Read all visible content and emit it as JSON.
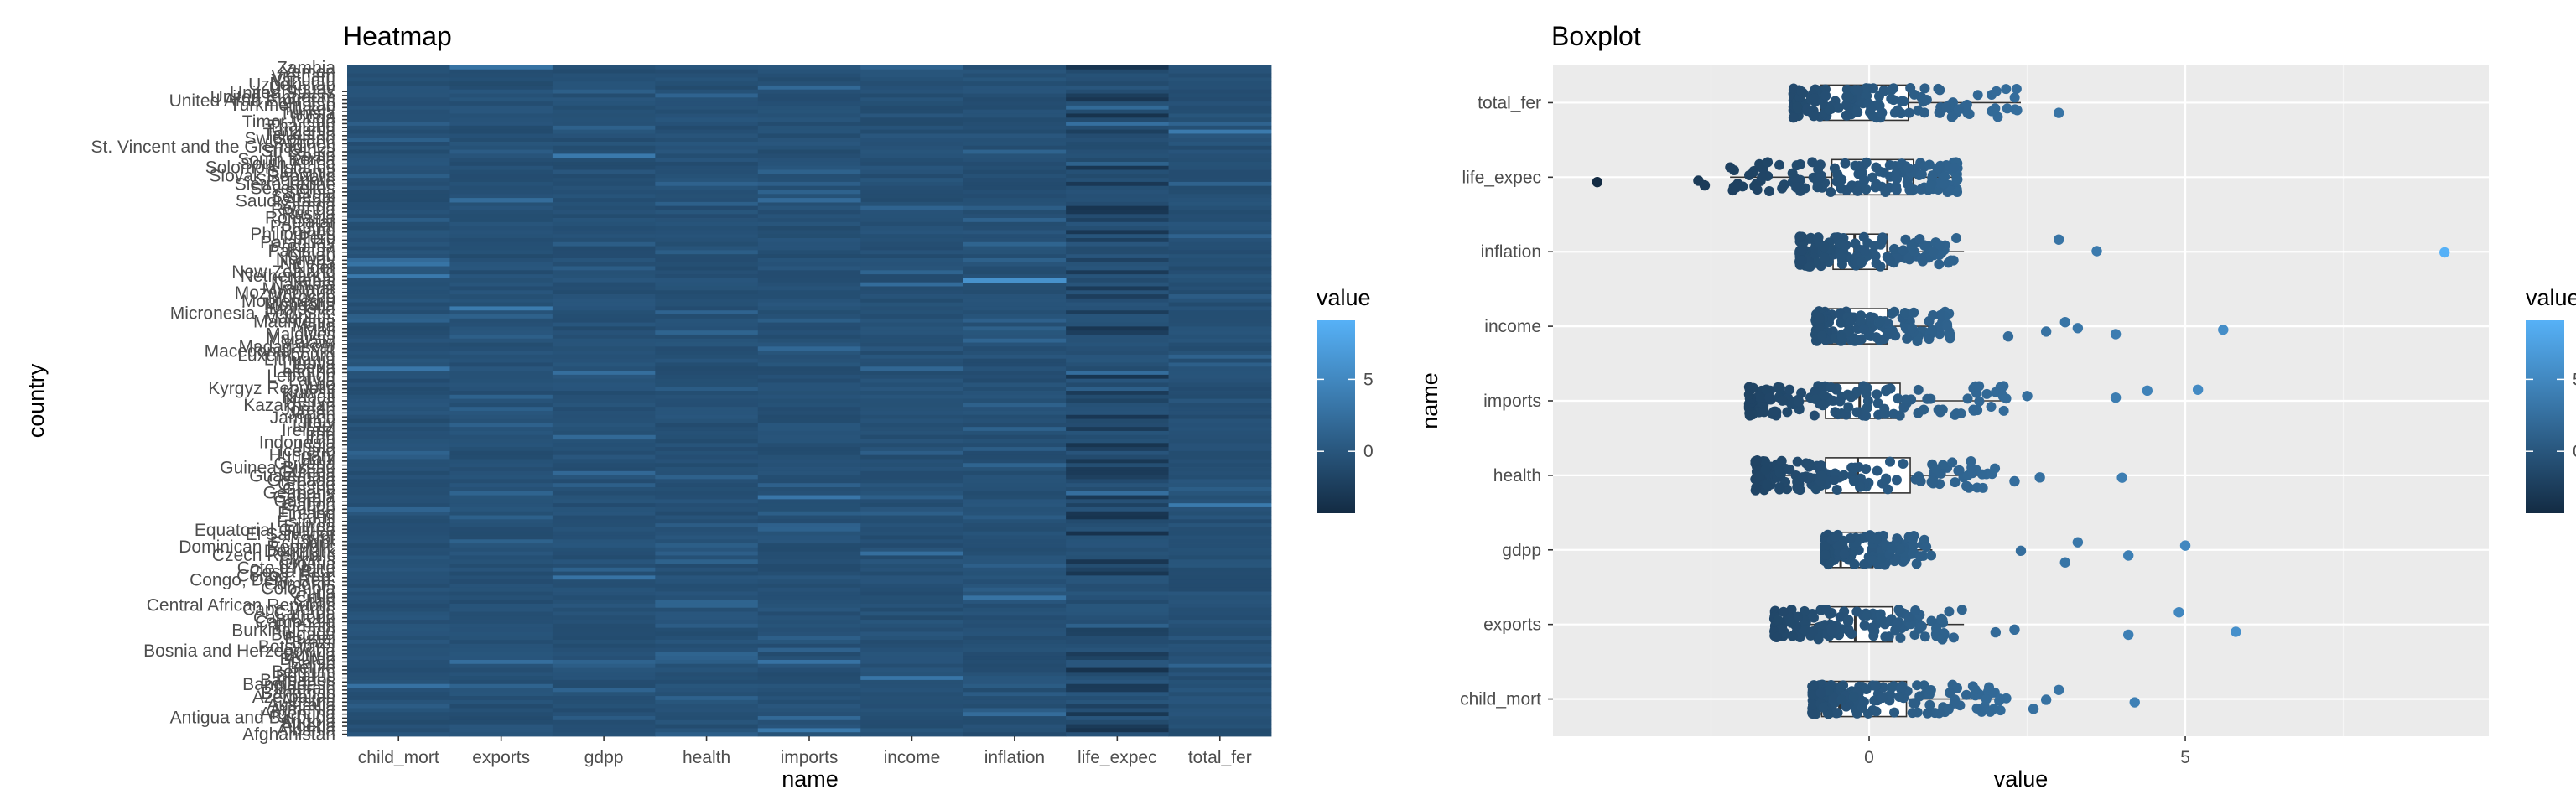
{
  "colors": {
    "panel_bg": "#ebebeb",
    "grid_major": "#ffffff",
    "grid_minor": "#f5f5f5",
    "tick": "#333333",
    "gradient_low": "#132b43",
    "gradient_high": "#56b1f7"
  },
  "chart_data": [
    {
      "id": "heatmap",
      "type": "heatmap",
      "title": "Heatmap",
      "xlabel": "name",
      "ylabel": "country",
      "x_categories": [
        "child_mort",
        "exports",
        "gdpp",
        "health",
        "imports",
        "income",
        "inflation",
        "life_expec",
        "total_fer"
      ],
      "y_count": 167,
      "visible_country_labels": [
        "Zambia",
        "Yemen",
        "Vietnam",
        "Vanuatu",
        "Uzbekistan",
        "Uruguay",
        "United States",
        "United Kingdom",
        "United Arab Emirates",
        "Turkmenistan",
        "Turkey",
        "Tunisia",
        "Tonga",
        "Timor-Leste",
        "Thailand",
        "Tanzania",
        "Tajikistan",
        "Switzerland",
        "Sweden",
        "St. Vincent and the Grenadines",
        "Sri Lanka",
        "Spain",
        "South Korea",
        "South Africa",
        "Solomon Islands",
        "Slovenia",
        "Slovak Republic",
        "Singapore",
        "Sierra Leone",
        "Seychelles",
        "Serbia",
        "Senegal",
        "Saudi Arabia",
        "Samoa",
        "Rwanda",
        "Russia",
        "Romania",
        "Qatar",
        "Portugal",
        "Poland",
        "Philippines",
        "Peru",
        "Paraguay",
        "Panama",
        "Pakistan",
        "Oman",
        "Norway",
        "Nigeria",
        "Niger",
        "New Zealand",
        "Netherlands",
        "Nepal",
        "Namibia",
        "Myanmar",
        "Mozambique",
        "Morocco",
        "Montenegro",
        "Mongolia",
        "Moldova",
        "Micronesia, Fed. Sts.",
        "Mauritius",
        "Mauritania",
        "Malta",
        "Mali",
        "Maldives",
        "Malaysia",
        "Malawi",
        "Madagascar",
        "Macedonia, FYR",
        "Luxembourg",
        "Lithuania",
        "Libya",
        "Liberia",
        "Lesotho",
        "Lebanon",
        "Latvia",
        "Lao",
        "Kyrgyz Republic",
        "Kuwait",
        "Kiribati",
        "Kenya",
        "Kazakhstan",
        "Jordan",
        "Japan",
        "Jamaica",
        "Italy",
        "Israel",
        "Ireland",
        "Iraq",
        "Iran",
        "Indonesia",
        "India",
        "Iceland",
        "Hungary",
        "Haiti",
        "Guyana",
        "Guinea-Bissau",
        "Guinea",
        "Guatemala",
        "Grenada",
        "Greece",
        "Ghana",
        "Germany",
        "Georgia",
        "Gambia",
        "Gabon",
        "France",
        "Finland",
        "Fiji",
        "Estonia",
        "Eritrea",
        "Equatorial Guinea",
        "El Salvador",
        "Egypt",
        "Ecuador",
        "Dominican Republic",
        "Denmark",
        "Czech Republic",
        "Cyprus",
        "Croatia",
        "Cote d'Ivoire",
        "Costa Rica",
        "Congo, Rep.",
        "Congo, Dem. Rep.",
        "Comoros",
        "Colombia",
        "China",
        "Chile",
        "Chad",
        "Central African Republic",
        "Cape Verde",
        "Canada",
        "Cameroon",
        "Cambodia",
        "Burundi",
        "Burkina Faso",
        "Bulgaria",
        "Brunei",
        "Brazil",
        "Botswana",
        "Bosnia and Herzegovina",
        "Bolivia",
        "Bhutan",
        "Benin",
        "Belize",
        "Belgium",
        "Belarus",
        "Barbados",
        "Bangladesh",
        "Bahrain",
        "Bahamas",
        "Azerbaijan",
        "Austria",
        "Australia",
        "Armenia",
        "Argentina",
        "Antigua and Barbuda",
        "Angola",
        "Algeria",
        "Albania",
        "Afghanistan"
      ],
      "legend": {
        "title": "value",
        "range": [
          -4.3,
          9.1
        ],
        "ticks": [
          0,
          5
        ]
      }
    },
    {
      "id": "boxplot",
      "type": "box",
      "title": "Boxplot",
      "xlabel": "value",
      "ylabel": "name",
      "categories": [
        "child_mort",
        "exports",
        "gdpp",
        "health",
        "imports",
        "income",
        "inflation",
        "life_expec",
        "total_fer"
      ],
      "xlim": [
        -5,
        9.8
      ],
      "x_ticks": [
        0,
        5
      ],
      "boxes": [
        {
          "name": "child_mort",
          "lower_whisker": -0.9,
          "q1": -0.75,
          "median": -0.47,
          "q3": 0.59,
          "upper_whisker": 2.2
        },
        {
          "name": "exports",
          "lower_whisker": -1.5,
          "q1": -0.63,
          "median": -0.22,
          "q3": 0.37,
          "upper_whisker": 1.5
        },
        {
          "name": "gdpp",
          "lower_whisker": -0.7,
          "q1": -0.64,
          "median": -0.45,
          "q3": 0.06,
          "upper_whisker": 1.0
        },
        {
          "name": "health",
          "lower_whisker": -1.8,
          "q1": -0.69,
          "median": -0.18,
          "q3": 0.65,
          "upper_whisker": 2.0
        },
        {
          "name": "imports",
          "lower_whisker": -1.9,
          "q1": -0.69,
          "median": -0.15,
          "q3": 0.49,
          "upper_whisker": 2.2
        },
        {
          "name": "income",
          "lower_whisker": -0.85,
          "q1": -0.72,
          "median": -0.37,
          "q3": 0.29,
          "upper_whisker": 1.3
        },
        {
          "name": "inflation",
          "lower_whisker": -1.1,
          "q1": -0.57,
          "median": -0.23,
          "q3": 0.28,
          "upper_whisker": 1.5
        },
        {
          "name": "life_expec",
          "lower_whisker": -2.2,
          "q1": -0.59,
          "median": 0.29,
          "q3": 0.7,
          "upper_whisker": 1.4
        },
        {
          "name": "total_fer",
          "lower_whisker": -1.2,
          "q1": -0.76,
          "median": -0.36,
          "q3": 0.62,
          "upper_whisker": 2.4
        }
      ],
      "outliers": [
        {
          "name": "child_mort",
          "values": [
            2.6,
            2.8,
            3.0,
            4.2
          ]
        },
        {
          "name": "exports",
          "values": [
            2.0,
            2.3,
            4.1,
            4.9,
            5.8
          ]
        },
        {
          "name": "gdpp",
          "values": [
            2.4,
            3.1,
            3.3,
            4.1,
            5.0
          ]
        },
        {
          "name": "health",
          "values": [
            2.3,
            2.7,
            4.0
          ]
        },
        {
          "name": "imports",
          "values": [
            2.5,
            3.9,
            4.4,
            5.2
          ]
        },
        {
          "name": "income",
          "values": [
            2.2,
            2.8,
            3.1,
            3.3,
            3.9,
            5.6
          ]
        },
        {
          "name": "inflation",
          "values": [
            3.0,
            3.6,
            9.1
          ]
        },
        {
          "name": "life_expec",
          "values": [
            -4.3,
            -2.7,
            -2.6
          ]
        },
        {
          "name": "total_fer",
          "values": [
            3.0
          ]
        }
      ],
      "legend": {
        "title": "value",
        "range": [
          -4.3,
          9.1
        ],
        "ticks": [
          0,
          5
        ]
      }
    }
  ]
}
